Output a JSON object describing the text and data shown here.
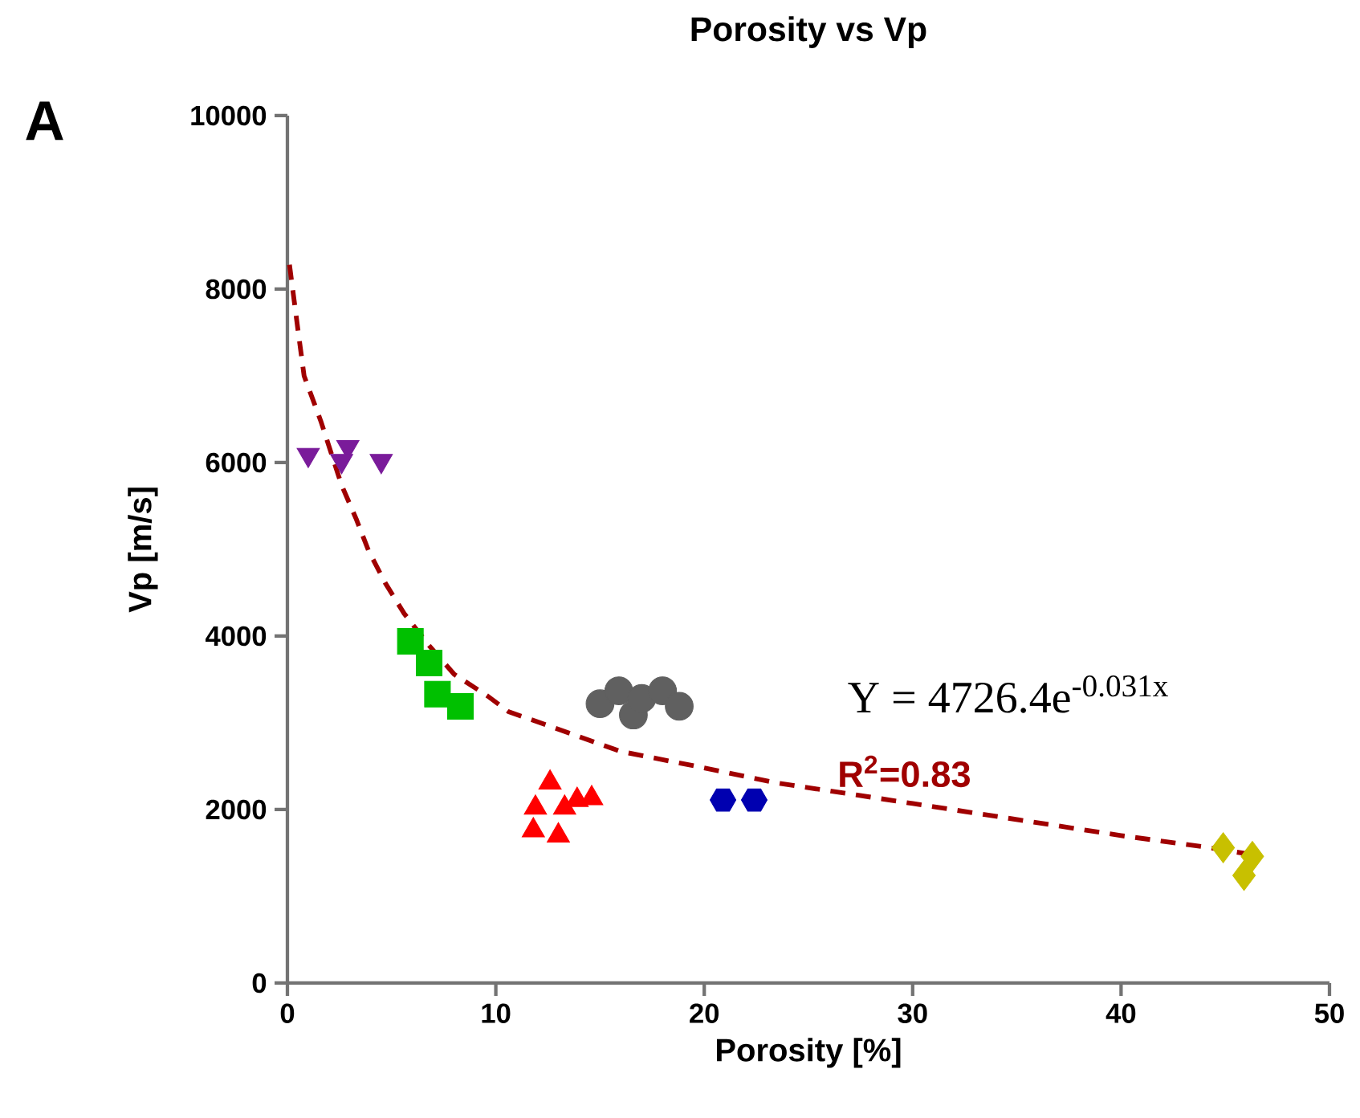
{
  "chart_data": {
    "type": "scatter",
    "title": "Porosity vs Vp",
    "xlabel": "Porosity [%]",
    "ylabel": "Vp [m/s]",
    "xlim": [
      0,
      50
    ],
    "ylim": [
      0,
      10000
    ],
    "xticks": [
      0,
      10,
      20,
      30,
      40,
      50
    ],
    "yticks": [
      0,
      2000,
      4000,
      6000,
      8000,
      10000
    ],
    "annotations": [
      "**A**",
      "Y = 4726.4e$^{-0.031x}$",
      "**R$^{2}$=0.83**"
    ],
    "series": [
      {
        "marker": "triangle-down",
        "color": "#7a1b9a",
        "x": [
          1.0,
          2.9,
          2.6,
          4.5
        ],
        "values": [
          6090,
          6180,
          6020,
          6020
        ]
      },
      {
        "marker": "square",
        "color": "#00c000",
        "x": [
          5.9,
          6.8,
          7.2,
          8.3
        ],
        "values": [
          3940,
          3690,
          3330,
          3190
        ]
      },
      {
        "marker": "triangle",
        "color": "#ff0000",
        "x": [
          12.6,
          11.9,
          11.8,
          13.0,
          13.3,
          13.9,
          14.6
        ],
        "values": [
          2310,
          2020,
          1760,
          1700,
          2020,
          2110,
          2130
        ]
      },
      {
        "marker": "circle",
        "color": "#606060",
        "x": [
          15.0,
          15.9,
          16.6,
          17.0,
          18.0,
          18.8
        ],
        "values": [
          3220,
          3370,
          3090,
          3280,
          3370,
          3190
        ]
      },
      {
        "color": "#0000b0",
        "x": [
          20.9,
          22.4
        ],
        "values": [
          2110,
          2110
        ]
      },
      {
        "marker": "diamond",
        "color": "#c8c000",
        "x": [
          44.9,
          46.3,
          45.9
        ],
        "values": [
          1560,
          1460,
          1240
        ]
      },
      {
        "type": "line",
        "marker": "none",
        "line_style": "dashed",
        "color": "#a00000",
        "x": [
          0.1,
          0.5,
          0.8,
          1.6,
          2.6,
          3.3,
          3.9,
          4.7,
          5.6,
          6.8,
          8.0,
          9.6,
          10.6,
          12.6,
          16.0,
          19.6,
          23.4,
          30,
          40,
          44,
          46.3
        ],
        "values": [
          8280,
          7540,
          7000,
          6480,
          5740,
          5350,
          4980,
          4610,
          4260,
          3890,
          3560,
          3310,
          3130,
          2960,
          2670,
          2500,
          2310,
          2070,
          1700,
          1570,
          1480
        ]
      }
    ]
  }
}
